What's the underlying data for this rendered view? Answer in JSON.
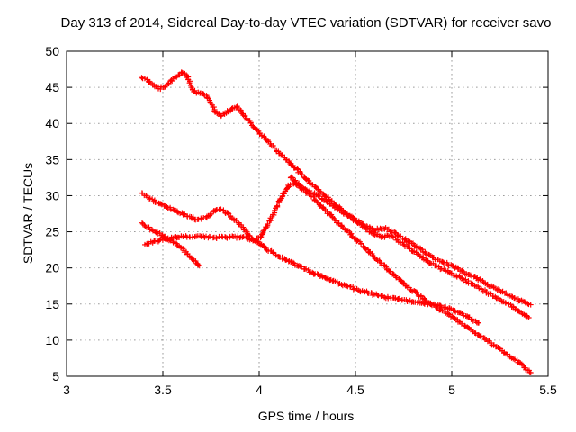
{
  "chart_data": {
    "type": "scatter",
    "title": "Day 313 of 2014, Sidereal Day-to-day VTEC variation (SDTVAR) for receiver savo",
    "xlabel": "GPS time / hours",
    "ylabel": "SDTVAR / TECUs",
    "xlim": [
      3,
      5.5
    ],
    "ylim": [
      5,
      50
    ],
    "xticks": [
      3,
      3.5,
      4,
      4.5,
      5,
      5.5
    ],
    "xtick_labels": [
      "3",
      "3.5",
      "4",
      "4.5",
      "5",
      "5.5"
    ],
    "yticks": [
      5,
      10,
      15,
      20,
      25,
      30,
      35,
      40,
      45,
      50
    ],
    "ytick_labels": [
      "5",
      "10",
      "15",
      "20",
      "25",
      "30",
      "35",
      "40",
      "45",
      "50"
    ],
    "grid": true,
    "legend": "none",
    "marker": "plus",
    "marker_color": "#ff0000",
    "grid_color": "#9b9b9b",
    "series": [
      {
        "name": "trace-1",
        "points": [
          [
            3.39,
            46.5
          ],
          [
            3.43,
            45.8
          ],
          [
            3.48,
            44.8
          ],
          [
            3.52,
            45.3
          ],
          [
            3.56,
            46.3
          ],
          [
            3.6,
            47.1
          ],
          [
            3.62,
            46.8
          ],
          [
            3.64,
            45.6
          ],
          [
            3.66,
            44.5
          ],
          [
            3.69,
            44.2
          ],
          [
            3.72,
            44.0
          ],
          [
            3.74,
            43.2
          ],
          [
            3.77,
            41.8
          ],
          [
            3.8,
            41.0
          ],
          [
            3.83,
            41.5
          ],
          [
            3.86,
            42.1
          ],
          [
            3.88,
            42.4
          ],
          [
            3.91,
            41.6
          ],
          [
            3.94,
            40.6
          ],
          [
            4.0,
            38.7
          ],
          [
            4.07,
            36.8
          ],
          [
            4.14,
            35.0
          ],
          [
            4.21,
            33.2
          ],
          [
            4.28,
            31.5
          ],
          [
            4.35,
            29.8
          ],
          [
            4.42,
            28.2
          ],
          [
            4.49,
            26.8
          ],
          [
            4.55,
            25.8
          ],
          [
            4.6,
            25.3
          ],
          [
            4.65,
            25.5
          ],
          [
            4.7,
            24.9
          ],
          [
            4.77,
            23.7
          ],
          [
            4.84,
            22.5
          ],
          [
            4.91,
            21.4
          ],
          [
            4.98,
            20.5
          ],
          [
            5.05,
            19.6
          ],
          [
            5.12,
            18.7
          ],
          [
            5.19,
            17.7
          ],
          [
            5.26,
            16.7
          ],
          [
            5.33,
            15.8
          ],
          [
            5.41,
            14.9
          ]
        ]
      },
      {
        "name": "trace-2",
        "points": [
          [
            3.39,
            30.3
          ],
          [
            3.45,
            29.3
          ],
          [
            3.51,
            28.6
          ],
          [
            3.57,
            27.9
          ],
          [
            3.63,
            27.2
          ],
          [
            3.68,
            26.7
          ],
          [
            3.72,
            26.9
          ],
          [
            3.76,
            27.7
          ],
          [
            3.79,
            28.2
          ],
          [
            3.82,
            27.8
          ],
          [
            3.86,
            27.0
          ],
          [
            3.9,
            26.0
          ],
          [
            3.94,
            24.8
          ],
          [
            3.97,
            23.9
          ],
          [
            4.0,
            24.1
          ],
          [
            4.04,
            25.8
          ],
          [
            4.08,
            27.8
          ],
          [
            4.12,
            30.0
          ],
          [
            4.15,
            31.3
          ],
          [
            4.18,
            31.6
          ],
          [
            4.21,
            31.2
          ],
          [
            4.26,
            30.6
          ],
          [
            4.31,
            29.9
          ],
          [
            4.37,
            28.9
          ],
          [
            4.43,
            27.8
          ],
          [
            4.49,
            26.7
          ],
          [
            4.55,
            25.5
          ],
          [
            4.6,
            24.6
          ],
          [
            4.64,
            24.3
          ],
          [
            4.68,
            24.5
          ],
          [
            4.73,
            23.6
          ],
          [
            4.79,
            22.5
          ],
          [
            4.85,
            21.4
          ],
          [
            4.91,
            20.4
          ],
          [
            4.97,
            19.6
          ],
          [
            5.03,
            18.8
          ],
          [
            5.09,
            18.0
          ],
          [
            5.15,
            17.1
          ],
          [
            5.21,
            16.2
          ],
          [
            5.27,
            15.3
          ],
          [
            5.33,
            14.4
          ],
          [
            5.4,
            13.1
          ]
        ]
      },
      {
        "name": "trace-3",
        "points": [
          [
            3.39,
            26.1
          ],
          [
            3.47,
            24.9
          ],
          [
            3.55,
            23.6
          ],
          [
            3.62,
            22.2
          ],
          [
            3.69,
            20.3
          ]
        ]
      },
      {
        "name": "trace-4",
        "points": [
          [
            3.41,
            23.3
          ],
          [
            3.46,
            23.7
          ],
          [
            3.52,
            24.0
          ],
          [
            3.58,
            24.3
          ],
          [
            3.65,
            24.4
          ],
          [
            3.72,
            24.3
          ],
          [
            3.79,
            24.2
          ],
          [
            3.86,
            24.3
          ],
          [
            3.93,
            24.2
          ],
          [
            3.98,
            23.7
          ],
          [
            4.03,
            22.8
          ],
          [
            4.09,
            21.8
          ],
          [
            4.15,
            21.0
          ],
          [
            4.21,
            20.2
          ],
          [
            4.28,
            19.3
          ],
          [
            4.36,
            18.4
          ],
          [
            4.44,
            17.6
          ],
          [
            4.52,
            16.9
          ],
          [
            4.6,
            16.3
          ],
          [
            4.68,
            15.8
          ],
          [
            4.76,
            15.5
          ],
          [
            4.84,
            15.2
          ],
          [
            4.92,
            14.9
          ],
          [
            5.0,
            14.3
          ],
          [
            5.07,
            13.4
          ],
          [
            5.14,
            12.4
          ]
        ]
      },
      {
        "name": "trace-5",
        "points": [
          [
            4.16,
            32.6
          ],
          [
            4.22,
            31.2
          ],
          [
            4.28,
            29.7
          ],
          [
            4.34,
            28.1
          ],
          [
            4.4,
            26.5
          ],
          [
            4.46,
            25.0
          ],
          [
            4.52,
            23.5
          ],
          [
            4.58,
            22.0
          ],
          [
            4.64,
            20.5
          ],
          [
            4.7,
            19.0
          ],
          [
            4.76,
            17.6
          ],
          [
            4.82,
            16.4
          ],
          [
            4.88,
            15.3
          ],
          [
            4.94,
            14.2
          ],
          [
            5.0,
            13.2
          ],
          [
            5.06,
            12.2
          ],
          [
            5.12,
            11.1
          ],
          [
            5.18,
            10.0
          ],
          [
            5.24,
            8.9
          ],
          [
            5.3,
            7.8
          ],
          [
            5.36,
            6.7
          ],
          [
            5.41,
            5.5
          ]
        ]
      }
    ]
  }
}
